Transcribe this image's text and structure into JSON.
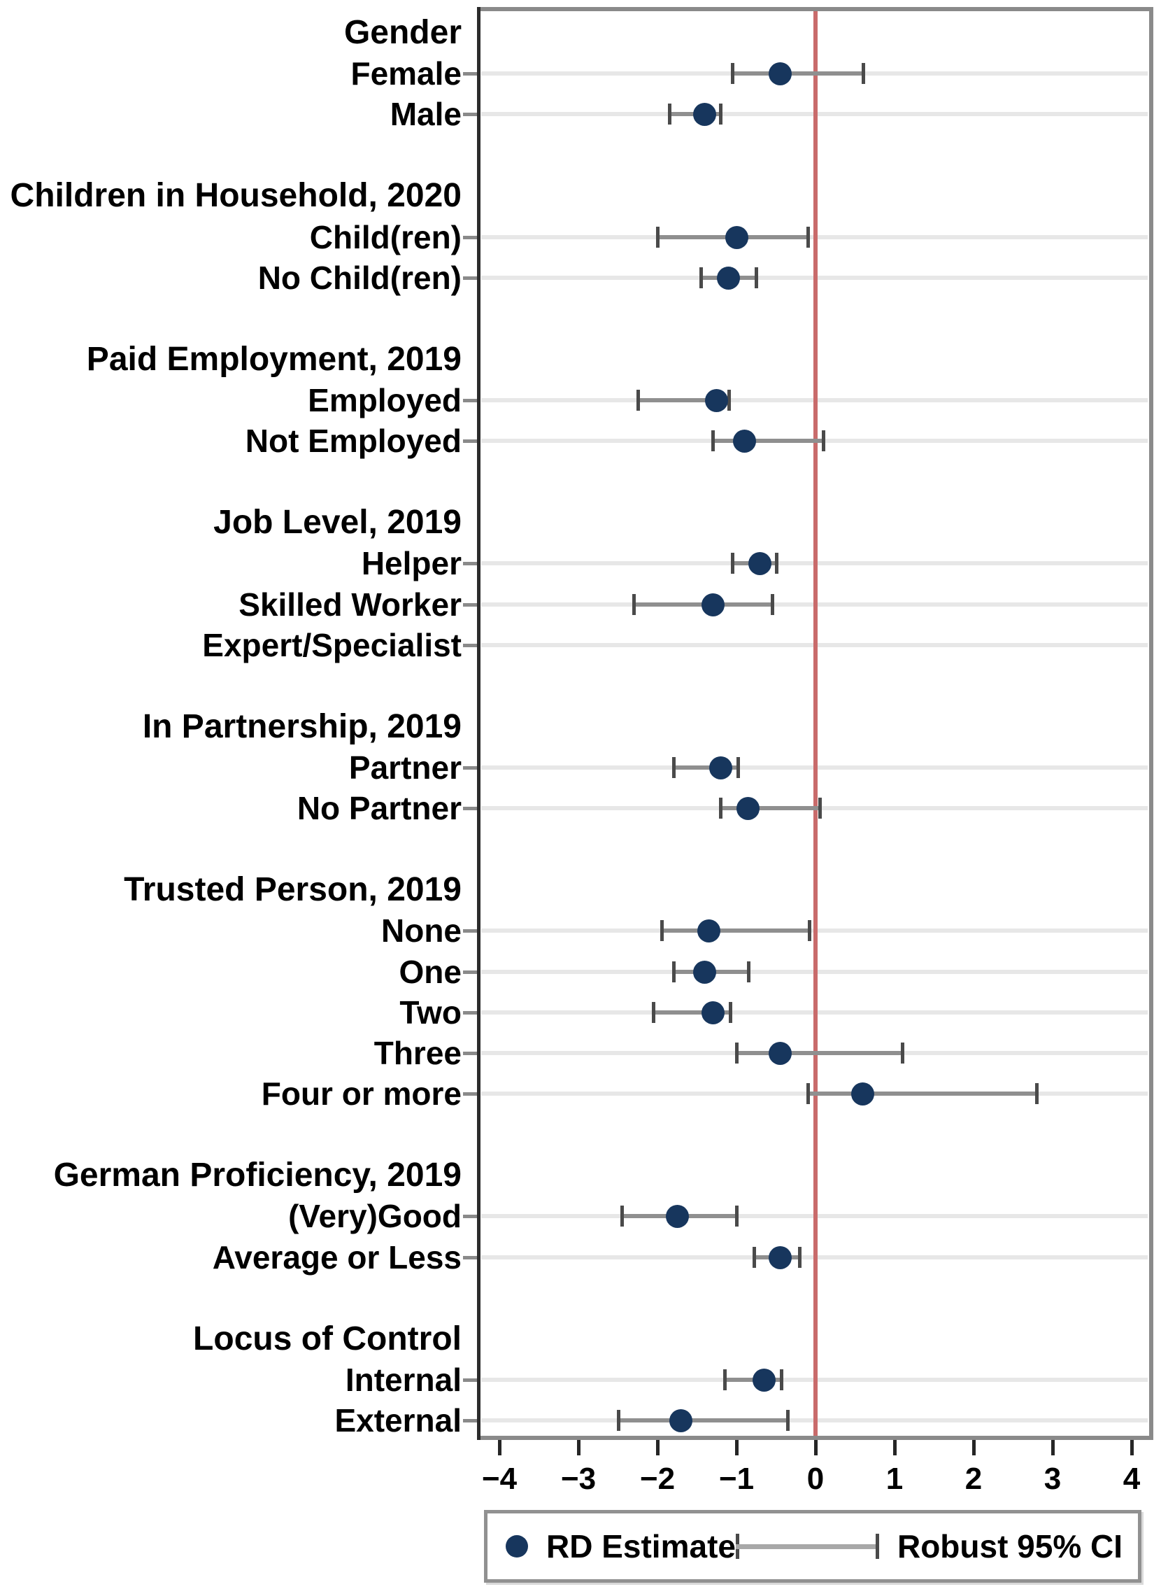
{
  "chart_data": {
    "type": "scatter",
    "variant": "forest-coefficient-plot",
    "title": "",
    "xlabel": "",
    "ylabel": "",
    "x_axis": {
      "min": -4,
      "max": 4,
      "tick_values": [
        -4,
        -3,
        -2,
        -1,
        0,
        1,
        2,
        3,
        4
      ],
      "tick_labels": [
        "−4",
        "−3",
        "−2",
        "−1",
        "0",
        "1",
        "2",
        "3",
        "4"
      ],
      "zero_reference_line": 0
    },
    "grid": "horizontal-row-gridlines",
    "legend": {
      "position": "bottom",
      "marker_label": "RD Estimate",
      "ci_label": "Robust 95% CI"
    },
    "colors": {
      "marker": "#17365d",
      "ci_line": "#8f8f8f",
      "ci_cap": "#4a4a4a",
      "zero_line": "#c96b6b",
      "gridline": "#e7e7e7",
      "frame": "#8a8a8a",
      "axis": "#2b2b2b"
    },
    "rows": [
      {
        "label": "Gender",
        "header": true,
        "estimate": null,
        "ci_low": null,
        "ci_high": null
      },
      {
        "label": "Female",
        "header": false,
        "estimate": -0.45,
        "ci_low": -1.05,
        "ci_high": 0.6
      },
      {
        "label": "Male",
        "header": false,
        "estimate": -1.4,
        "ci_low": -1.85,
        "ci_high": -1.2
      },
      {
        "label": "Children in Household, 2020",
        "header": true,
        "estimate": null,
        "ci_low": null,
        "ci_high": null
      },
      {
        "label": "Child(ren)",
        "header": false,
        "estimate": -1.0,
        "ci_low": -2.0,
        "ci_high": -0.1
      },
      {
        "label": "No Child(ren)",
        "header": false,
        "estimate": -1.1,
        "ci_low": -1.45,
        "ci_high": -0.75
      },
      {
        "label": "Paid Employment, 2019",
        "header": true,
        "estimate": null,
        "ci_low": null,
        "ci_high": null
      },
      {
        "label": "Employed",
        "header": false,
        "estimate": -1.25,
        "ci_low": -2.25,
        "ci_high": -1.1
      },
      {
        "label": "Not Employed",
        "header": false,
        "estimate": -0.9,
        "ci_low": -1.3,
        "ci_high": 0.1
      },
      {
        "label": "Job Level, 2019",
        "header": true,
        "estimate": null,
        "ci_low": null,
        "ci_high": null
      },
      {
        "label": "Helper",
        "header": false,
        "estimate": -0.7,
        "ci_low": -1.05,
        "ci_high": -0.5
      },
      {
        "label": "Skilled Worker",
        "header": false,
        "estimate": -1.3,
        "ci_low": -2.3,
        "ci_high": -0.55
      },
      {
        "label": "Expert/Specialist",
        "header": false,
        "estimate": null,
        "ci_low": null,
        "ci_high": null
      },
      {
        "label": "In Partnership, 2019",
        "header": true,
        "estimate": null,
        "ci_low": null,
        "ci_high": null
      },
      {
        "label": "Partner",
        "header": false,
        "estimate": -1.2,
        "ci_low": -1.8,
        "ci_high": -0.98
      },
      {
        "label": "No Partner",
        "header": false,
        "estimate": -0.85,
        "ci_low": -1.2,
        "ci_high": 0.05
      },
      {
        "label": "Trusted Person, 2019",
        "header": true,
        "estimate": null,
        "ci_low": null,
        "ci_high": null
      },
      {
        "label": "None",
        "header": false,
        "estimate": -1.35,
        "ci_low": -1.95,
        "ci_high": -0.08
      },
      {
        "label": "One",
        "header": false,
        "estimate": -1.4,
        "ci_low": -1.8,
        "ci_high": -0.85
      },
      {
        "label": "Two",
        "header": false,
        "estimate": -1.3,
        "ci_low": -2.05,
        "ci_high": -1.08
      },
      {
        "label": "Three",
        "header": false,
        "estimate": -0.45,
        "ci_low": -1.0,
        "ci_high": 1.1
      },
      {
        "label": "Four or more",
        "header": false,
        "estimate": 0.6,
        "ci_low": -0.1,
        "ci_high": 2.8
      },
      {
        "label": "German Proficiency, 2019",
        "header": true,
        "estimate": null,
        "ci_low": null,
        "ci_high": null
      },
      {
        "label": "(Very)Good",
        "header": false,
        "estimate": -1.75,
        "ci_low": -2.45,
        "ci_high": -1.0
      },
      {
        "label": "Average or Less",
        "header": false,
        "estimate": -0.45,
        "ci_low": -0.78,
        "ci_high": -0.2
      },
      {
        "label": "Locus of Control",
        "header": true,
        "estimate": null,
        "ci_low": null,
        "ci_high": null
      },
      {
        "label": "Internal",
        "header": false,
        "estimate": -0.65,
        "ci_low": -1.15,
        "ci_high": -0.43
      },
      {
        "label": "External",
        "header": false,
        "estimate": -1.7,
        "ci_low": -2.5,
        "ci_high": -0.35
      }
    ]
  }
}
